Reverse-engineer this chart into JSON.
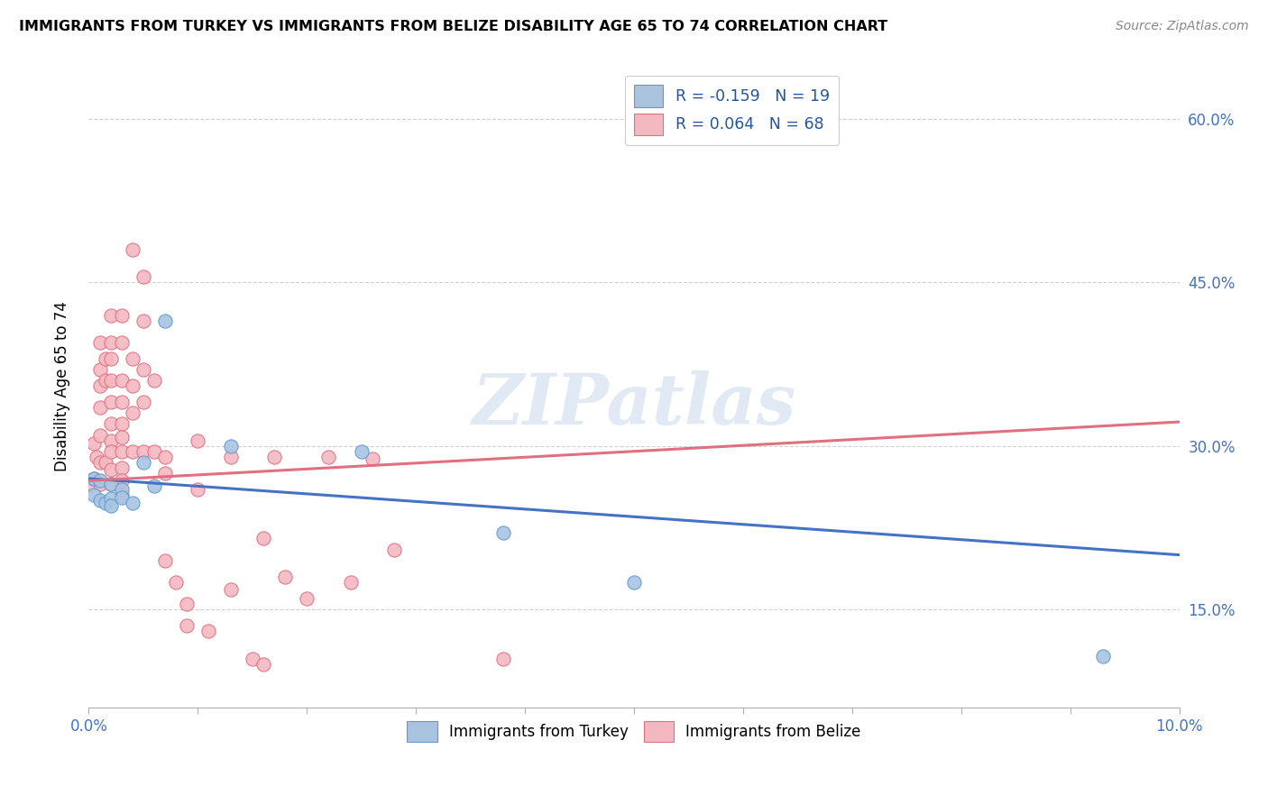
{
  "title": "IMMIGRANTS FROM TURKEY VS IMMIGRANTS FROM BELIZE DISABILITY AGE 65 TO 74 CORRELATION CHART",
  "source": "Source: ZipAtlas.com",
  "ylabel": "Disability Age 65 to 74",
  "xlim": [
    0.0,
    0.1
  ],
  "ylim": [
    0.06,
    0.65
  ],
  "legend_turkey": "R = -0.159   N = 19",
  "legend_belize": "R = 0.064   N = 68",
  "turkey_scatter_color": "#aac4e0",
  "turkey_scatter_edge": "#5b9bd5",
  "belize_scatter_color": "#f4b8c1",
  "belize_scatter_edge": "#e07080",
  "turkey_line_color": "#4472c4",
  "belize_line_color": "#e07080",
  "watermark": "ZIPatlas",
  "yticks": [
    0.15,
    0.3,
    0.45,
    0.6
  ],
  "ytick_labels": [
    "15.0%",
    "30.0%",
    "45.0%",
    "60.0%"
  ],
  "turkey_points_x": [
    0.0005,
    0.0005,
    0.001,
    0.001,
    0.0015,
    0.002,
    0.002,
    0.002,
    0.003,
    0.003,
    0.004,
    0.005,
    0.006,
    0.007,
    0.013,
    0.025,
    0.038,
    0.05,
    0.093
  ],
  "turkey_points_y": [
    0.27,
    0.255,
    0.268,
    0.25,
    0.248,
    0.265,
    0.252,
    0.245,
    0.26,
    0.253,
    0.248,
    0.285,
    0.263,
    0.415,
    0.3,
    0.295,
    0.22,
    0.175,
    0.107
  ],
  "belize_points_x": [
    0.0003,
    0.0005,
    0.0005,
    0.0007,
    0.001,
    0.001,
    0.001,
    0.001,
    0.001,
    0.001,
    0.001,
    0.0015,
    0.0015,
    0.0015,
    0.002,
    0.002,
    0.002,
    0.002,
    0.002,
    0.002,
    0.002,
    0.002,
    0.002,
    0.002,
    0.003,
    0.003,
    0.003,
    0.003,
    0.003,
    0.003,
    0.003,
    0.003,
    0.003,
    0.003,
    0.004,
    0.004,
    0.004,
    0.004,
    0.004,
    0.005,
    0.005,
    0.005,
    0.005,
    0.005,
    0.006,
    0.006,
    0.007,
    0.007,
    0.007,
    0.008,
    0.009,
    0.009,
    0.01,
    0.01,
    0.011,
    0.013,
    0.013,
    0.015,
    0.016,
    0.016,
    0.017,
    0.018,
    0.02,
    0.022,
    0.024,
    0.026,
    0.028,
    0.038
  ],
  "belize_points_y": [
    0.265,
    0.27,
    0.302,
    0.29,
    0.395,
    0.37,
    0.355,
    0.335,
    0.31,
    0.285,
    0.265,
    0.38,
    0.36,
    0.285,
    0.42,
    0.395,
    0.38,
    0.36,
    0.34,
    0.32,
    0.305,
    0.295,
    0.278,
    0.265,
    0.42,
    0.395,
    0.36,
    0.34,
    0.32,
    0.308,
    0.295,
    0.28,
    0.268,
    0.255,
    0.48,
    0.38,
    0.355,
    0.33,
    0.295,
    0.455,
    0.415,
    0.37,
    0.34,
    0.295,
    0.36,
    0.295,
    0.29,
    0.275,
    0.195,
    0.175,
    0.135,
    0.155,
    0.305,
    0.26,
    0.13,
    0.29,
    0.168,
    0.105,
    0.215,
    0.1,
    0.29,
    0.18,
    0.16,
    0.29,
    0.175,
    0.288,
    0.205,
    0.105
  ],
  "turkey_line_x": [
    0.0,
    0.1
  ],
  "turkey_line_y": [
    0.27,
    0.2
  ],
  "belize_line_x": [
    0.0,
    0.1
  ],
  "belize_line_y": [
    0.268,
    0.322
  ]
}
